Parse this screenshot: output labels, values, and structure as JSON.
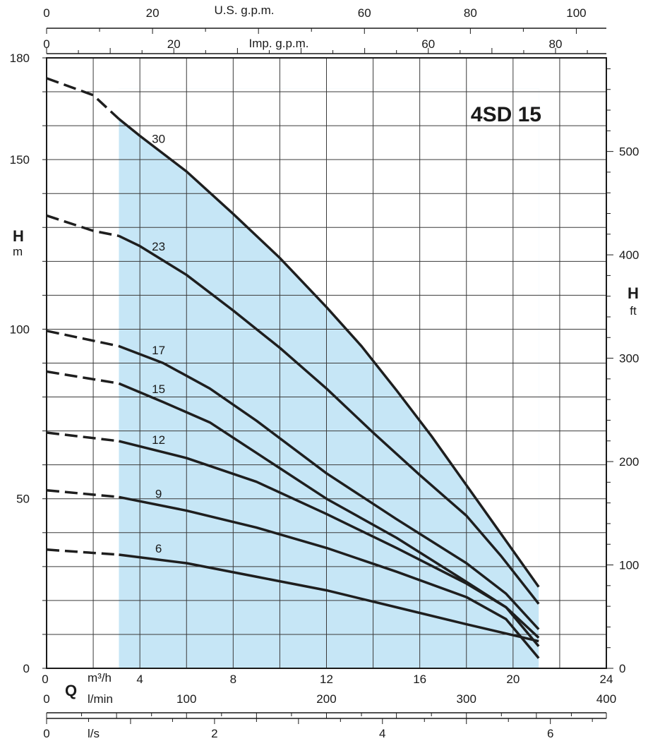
{
  "chart_data": {
    "type": "line",
    "title": "4SD 15",
    "xlabel": "Q",
    "ylabel_left": {
      "symbol": "H",
      "unit": "m"
    },
    "ylabel_right": {
      "symbol": "H",
      "unit": "ft"
    },
    "x_unit": "m³/h",
    "xlim": [
      0,
      24
    ],
    "ylim": [
      0,
      180
    ],
    "grid": true,
    "x_ticks": [
      0,
      4,
      8,
      12,
      16,
      20,
      24
    ],
    "y_ticks": [
      0,
      50,
      100,
      150,
      180
    ],
    "secondary_axes": {
      "us_gpm": {
        "label": "U.S. g.p.m.",
        "ticks": [
          0,
          20,
          60,
          80,
          100
        ],
        "factor": 4.4029
      },
      "imp_gpm": {
        "label": "Imp. g.p.m.",
        "ticks": [
          0,
          20,
          60,
          80
        ],
        "factor": 3.6662
      },
      "l_min": {
        "label": "l/min",
        "ticks": [
          0,
          100,
          200,
          300,
          400
        ],
        "factor": 16.6667
      },
      "l_s": {
        "label": "l/s",
        "ticks": [
          0,
          2,
          4,
          6
        ],
        "factor": 0.27778
      },
      "ft": {
        "ticks": [
          0,
          100,
          200,
          300,
          400,
          500
        ],
        "factor": 3.28084
      }
    },
    "operating_range": [
      3.1,
      21.1
    ],
    "operating_range_color": "#c6e6f6",
    "line_color": "#1e1e1e",
    "series": [
      {
        "name": "30",
        "dashed": {
          "x": [
            0,
            2,
            3.1
          ],
          "y": [
            174,
            169,
            162
          ]
        },
        "x": [
          3.1,
          4,
          6,
          8,
          10,
          12,
          13.5,
          15,
          16.5,
          18,
          19.5,
          21.1
        ],
        "y": [
          162,
          157,
          146.5,
          134,
          121,
          106.5,
          95,
          82,
          68.5,
          54,
          39.5,
          24
        ]
      },
      {
        "name": "23",
        "dashed": {
          "x": [
            0,
            2,
            3.1
          ],
          "y": [
            133.5,
            129,
            127.5
          ]
        },
        "x": [
          3.1,
          4,
          6,
          8,
          10,
          12,
          14,
          16,
          18,
          19.5,
          21.1
        ],
        "y": [
          127.5,
          124.5,
          116,
          105.5,
          94.5,
          82.5,
          69.5,
          57,
          45,
          33,
          19
        ]
      },
      {
        "name": "17",
        "dashed": {
          "x": [
            0,
            3.1
          ],
          "y": [
            99.5,
            95
          ]
        },
        "x": [
          3.1,
          5,
          7,
          9,
          12,
          15,
          18,
          19.7,
          21.1
        ],
        "y": [
          95,
          90,
          82.5,
          73,
          57.5,
          44,
          31,
          22,
          11.5
        ]
      },
      {
        "name": "15",
        "dashed": {
          "x": [
            0,
            3.1
          ],
          "y": [
            87.5,
            84
          ]
        },
        "x": [
          3.1,
          5,
          7,
          9,
          12,
          15,
          18,
          19.7,
          21.1
        ],
        "y": [
          84,
          78.5,
          72.5,
          63.5,
          50,
          38.5,
          25.5,
          18,
          9
        ]
      },
      {
        "name": "12",
        "dashed": {
          "x": [
            0,
            3.1
          ],
          "y": [
            69.5,
            67
          ]
        },
        "x": [
          3.1,
          6,
          9,
          12,
          15,
          18,
          19.7,
          21.1
        ],
        "y": [
          67,
          62,
          55,
          45.5,
          35.5,
          25,
          18,
          6.5
        ]
      },
      {
        "name": "9",
        "dashed": {
          "x": [
            0,
            3.1
          ],
          "y": [
            52.5,
            50.5
          ]
        },
        "x": [
          3.1,
          6,
          9,
          12,
          15,
          18,
          19.7,
          21.1
        ],
        "y": [
          50.5,
          46.5,
          41.5,
          35.5,
          28.5,
          21,
          14.5,
          3
        ]
      },
      {
        "name": "6",
        "dashed": {
          "x": [
            0,
            3.1
          ],
          "y": [
            35,
            33.5
          ]
        },
        "x": [
          3.1,
          6,
          9,
          12,
          15,
          18,
          21.1
        ],
        "y": [
          33.5,
          31,
          27,
          23,
          18,
          13,
          8
        ]
      }
    ]
  }
}
